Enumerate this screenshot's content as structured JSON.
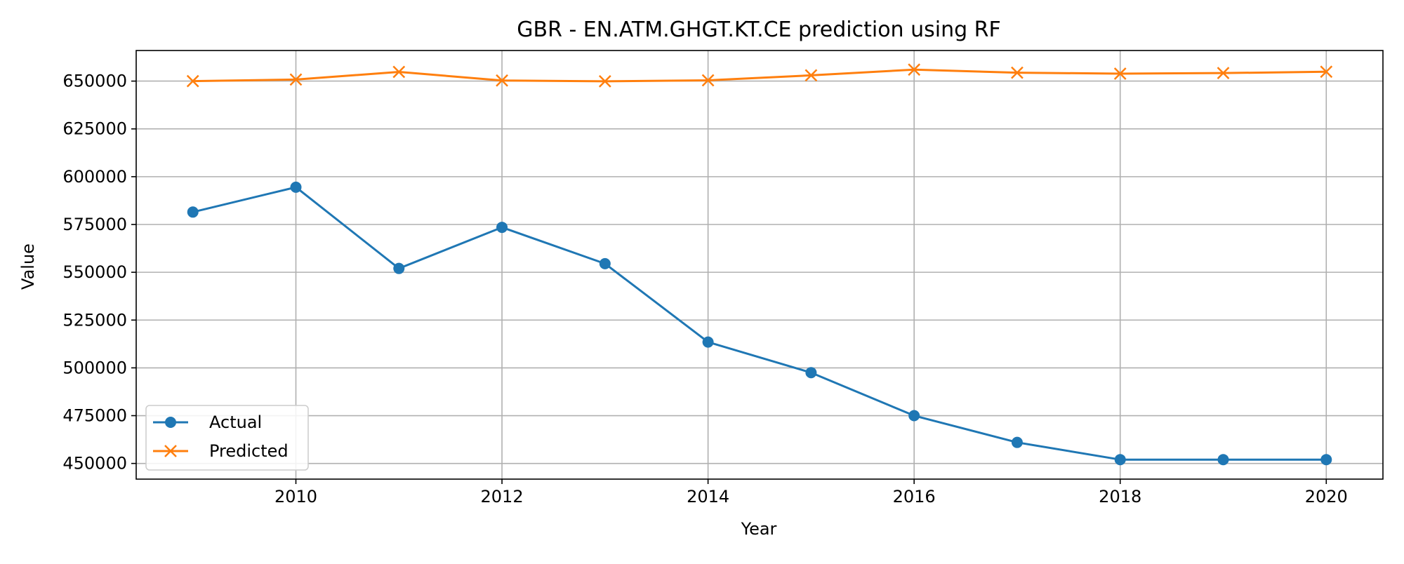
{
  "chart_data": {
    "type": "line",
    "title": "GBR - EN.ATM.GHGT.KT.CE prediction using RF",
    "xlabel": "Year",
    "ylabel": "Value",
    "x": [
      2009,
      2010,
      2011,
      2012,
      2013,
      2014,
      2015,
      2016,
      2017,
      2018,
      2019,
      2020
    ],
    "xlim": [
      2008.45,
      2020.55
    ],
    "ylim": [
      441800,
      666000
    ],
    "xticks": [
      2010,
      2012,
      2014,
      2016,
      2018,
      2020
    ],
    "yticks": [
      450000,
      475000,
      500000,
      525000,
      550000,
      575000,
      600000,
      625000,
      650000
    ],
    "grid": true,
    "legend_position": "lower-left",
    "series": [
      {
        "name": "Actual",
        "marker": "circle",
        "color": "#1f77b4",
        "values": [
          581500,
          594500,
          552000,
          573500,
          554500,
          513500,
          497500,
          475000,
          461000,
          452000,
          452000,
          452000
        ]
      },
      {
        "name": "Predicted",
        "marker": "x",
        "color": "#ff7f0e",
        "values": [
          650000,
          650800,
          654800,
          650300,
          649900,
          650400,
          653000,
          656000,
          654400,
          653900,
          654200,
          654900
        ]
      }
    ]
  }
}
